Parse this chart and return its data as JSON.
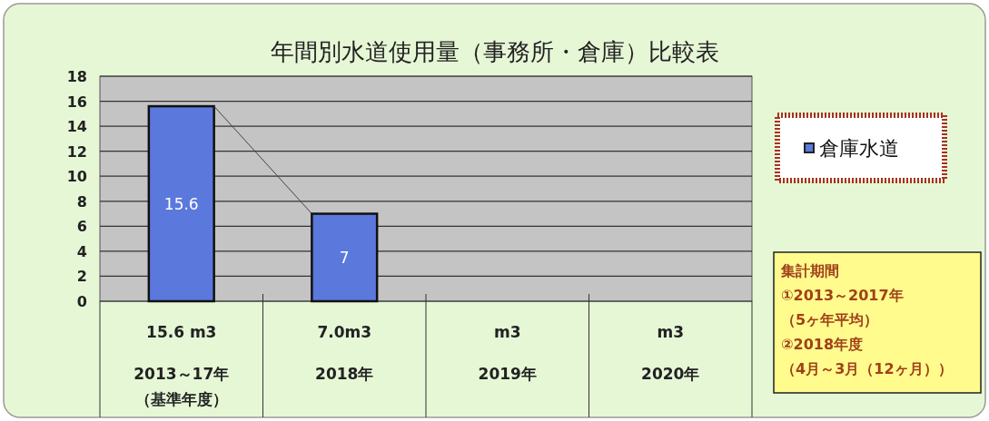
{
  "chart_data": {
    "type": "bar",
    "title": "年間別水道使用量（事務所・倉庫）比較表",
    "categories": [
      "15.6 m3\n2013～17年（基準年度）",
      "7.0m3\n2018年",
      "m3\n2019年",
      "m3\n2020年"
    ],
    "series": [
      {
        "name": "倉庫水道",
        "color": "#5b78dc",
        "values": [
          15.6,
          7,
          null,
          null
        ],
        "value_labels": [
          "15.6",
          "7",
          null,
          null
        ]
      }
    ],
    "ylim": [
      0,
      18
    ],
    "yticks": [
      0,
      2,
      4,
      6,
      8,
      10,
      12,
      14,
      16,
      18
    ],
    "grid": "y",
    "legend": "right",
    "annotations": [
      "集計期間",
      "①2013～2017年",
      "（5ヶ年平均）",
      "②2018年度",
      "（4月～3月（12ヶ月））"
    ]
  }
}
